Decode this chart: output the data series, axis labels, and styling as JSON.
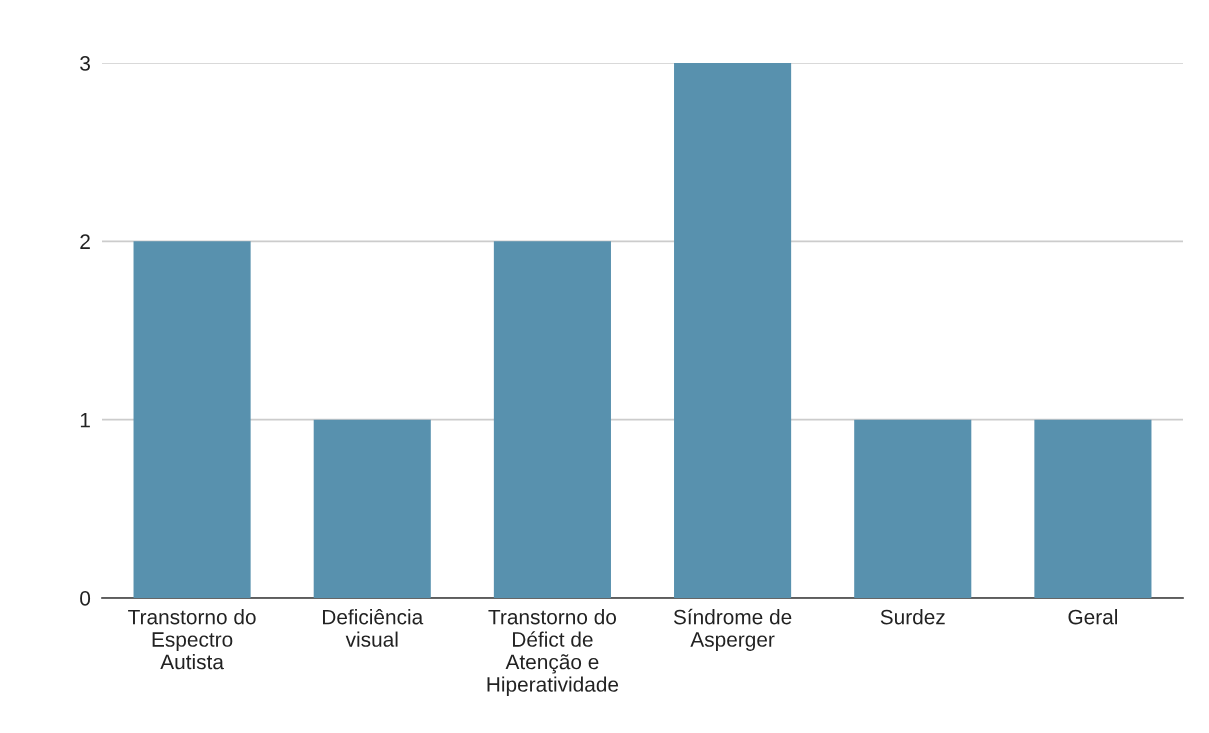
{
  "chart_data": {
    "type": "bar",
    "categories": [
      "Transtorno do\nEspectro\nAutista",
      "Deficiência\nvisual",
      "Transtorno do\nDéfict de\nAtenção e\nHiperatividade",
      "Síndrome de\nAsperger",
      "Surdez",
      "Geral"
    ],
    "values": [
      2,
      1,
      2,
      3,
      1,
      1
    ],
    "color": "#5891ae",
    "ylim": [
      0,
      3
    ],
    "yticks": [
      0,
      1,
      2,
      3
    ],
    "grid": "y",
    "legend": false
  }
}
